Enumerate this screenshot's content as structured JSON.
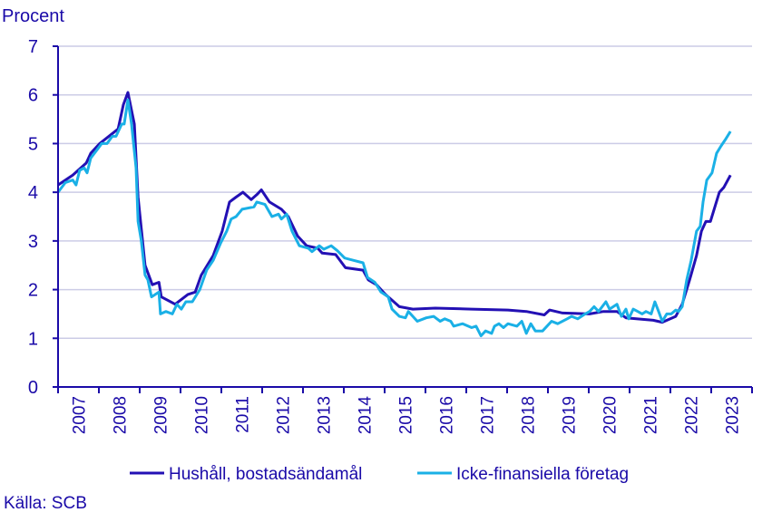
{
  "chart_data": {
    "type": "line",
    "ylabel": "Procent",
    "ylim": [
      0,
      7
    ],
    "yticks": [
      0,
      1,
      2,
      3,
      4,
      5,
      6,
      7
    ],
    "xlim": [
      2007,
      2024
    ],
    "xtick_labels": [
      "2007",
      "2008",
      "2009",
      "2010",
      "2011",
      "2012",
      "2013",
      "2014",
      "2015",
      "2016",
      "2017",
      "2018",
      "2019",
      "2020",
      "2021",
      "2022",
      "2023"
    ],
    "grid": true,
    "legend_position": "bottom",
    "source": "Källa: SCB",
    "colors": {
      "axis": "#1a0aa8",
      "grid": "#cccce6"
    },
    "series": [
      {
        "name": "Hushåll, bostadsändamål",
        "color": "#2310b4",
        "points": [
          [
            2007.0,
            4.15
          ],
          [
            2007.36,
            4.35
          ],
          [
            2007.69,
            4.6
          ],
          [
            2007.8,
            4.8
          ],
          [
            2008.02,
            5.0
          ],
          [
            2008.47,
            5.3
          ],
          [
            2008.6,
            5.8
          ],
          [
            2008.71,
            6.05
          ],
          [
            2008.87,
            5.4
          ],
          [
            2008.96,
            3.9
          ],
          [
            2009.13,
            2.5
          ],
          [
            2009.31,
            2.1
          ],
          [
            2009.47,
            2.15
          ],
          [
            2009.53,
            1.85
          ],
          [
            2009.87,
            1.7
          ],
          [
            2010.18,
            1.9
          ],
          [
            2010.36,
            1.95
          ],
          [
            2010.51,
            2.3
          ],
          [
            2010.8,
            2.7
          ],
          [
            2011.02,
            3.2
          ],
          [
            2011.2,
            3.8
          ],
          [
            2011.36,
            3.9
          ],
          [
            2011.53,
            4.0
          ],
          [
            2011.73,
            3.85
          ],
          [
            2011.87,
            3.95
          ],
          [
            2011.98,
            4.05
          ],
          [
            2012.18,
            3.8
          ],
          [
            2012.47,
            3.65
          ],
          [
            2012.64,
            3.5
          ],
          [
            2012.87,
            3.1
          ],
          [
            2013.09,
            2.9
          ],
          [
            2013.36,
            2.85
          ],
          [
            2013.47,
            2.75
          ],
          [
            2013.8,
            2.72
          ],
          [
            2014.04,
            2.45
          ],
          [
            2014.47,
            2.4
          ],
          [
            2014.6,
            2.2
          ],
          [
            2014.8,
            2.1
          ],
          [
            2015.02,
            1.9
          ],
          [
            2015.36,
            1.65
          ],
          [
            2015.69,
            1.6
          ],
          [
            2016.24,
            1.62
          ],
          [
            2017.13,
            1.6
          ],
          [
            2018.02,
            1.58
          ],
          [
            2018.47,
            1.55
          ],
          [
            2018.91,
            1.48
          ],
          [
            2019.04,
            1.58
          ],
          [
            2019.36,
            1.52
          ],
          [
            2020.02,
            1.5
          ],
          [
            2020.36,
            1.55
          ],
          [
            2020.69,
            1.55
          ],
          [
            2020.91,
            1.42
          ],
          [
            2021.58,
            1.37
          ],
          [
            2021.8,
            1.33
          ],
          [
            2022.13,
            1.45
          ],
          [
            2022.29,
            1.7
          ],
          [
            2022.47,
            2.2
          ],
          [
            2022.64,
            2.7
          ],
          [
            2022.76,
            3.2
          ],
          [
            2022.87,
            3.4
          ],
          [
            2022.98,
            3.4
          ],
          [
            2023.2,
            4.0
          ],
          [
            2023.31,
            4.1
          ],
          [
            2023.47,
            4.35
          ]
        ]
      },
      {
        "name": "Icke-finansiella företag",
        "color": "#1ab0e6",
        "points": [
          [
            2007.0,
            4.0
          ],
          [
            2007.18,
            4.2
          ],
          [
            2007.36,
            4.25
          ],
          [
            2007.44,
            4.15
          ],
          [
            2007.53,
            4.45
          ],
          [
            2007.64,
            4.5
          ],
          [
            2007.71,
            4.4
          ],
          [
            2007.8,
            4.7
          ],
          [
            2007.98,
            4.9
          ],
          [
            2008.07,
            5.0
          ],
          [
            2008.2,
            5.0
          ],
          [
            2008.33,
            5.15
          ],
          [
            2008.42,
            5.15
          ],
          [
            2008.56,
            5.4
          ],
          [
            2008.62,
            5.4
          ],
          [
            2008.71,
            5.9
          ],
          [
            2008.8,
            5.4
          ],
          [
            2008.91,
            4.5
          ],
          [
            2008.96,
            3.4
          ],
          [
            2009.04,
            3.0
          ],
          [
            2009.13,
            2.3
          ],
          [
            2009.2,
            2.2
          ],
          [
            2009.29,
            1.85
          ],
          [
            2009.47,
            1.95
          ],
          [
            2009.51,
            1.5
          ],
          [
            2009.64,
            1.55
          ],
          [
            2009.8,
            1.5
          ],
          [
            2009.91,
            1.7
          ],
          [
            2010.02,
            1.6
          ],
          [
            2010.13,
            1.75
          ],
          [
            2010.29,
            1.75
          ],
          [
            2010.47,
            2.0
          ],
          [
            2010.64,
            2.4
          ],
          [
            2010.8,
            2.6
          ],
          [
            2010.98,
            2.95
          ],
          [
            2011.13,
            3.2
          ],
          [
            2011.24,
            3.45
          ],
          [
            2011.36,
            3.5
          ],
          [
            2011.51,
            3.65
          ],
          [
            2011.8,
            3.7
          ],
          [
            2011.87,
            3.8
          ],
          [
            2012.07,
            3.75
          ],
          [
            2012.24,
            3.5
          ],
          [
            2012.4,
            3.55
          ],
          [
            2012.47,
            3.45
          ],
          [
            2012.6,
            3.55
          ],
          [
            2012.73,
            3.2
          ],
          [
            2012.91,
            2.9
          ],
          [
            2013.13,
            2.85
          ],
          [
            2013.22,
            2.78
          ],
          [
            2013.4,
            2.9
          ],
          [
            2013.51,
            2.83
          ],
          [
            2013.69,
            2.9
          ],
          [
            2013.84,
            2.8
          ],
          [
            2014.02,
            2.65
          ],
          [
            2014.24,
            2.6
          ],
          [
            2014.47,
            2.55
          ],
          [
            2014.58,
            2.25
          ],
          [
            2014.76,
            2.15
          ],
          [
            2014.91,
            1.95
          ],
          [
            2015.09,
            1.85
          ],
          [
            2015.18,
            1.6
          ],
          [
            2015.36,
            1.45
          ],
          [
            2015.51,
            1.42
          ],
          [
            2015.58,
            1.55
          ],
          [
            2015.69,
            1.45
          ],
          [
            2015.8,
            1.35
          ],
          [
            2016.02,
            1.42
          ],
          [
            2016.2,
            1.45
          ],
          [
            2016.36,
            1.35
          ],
          [
            2016.47,
            1.4
          ],
          [
            2016.62,
            1.35
          ],
          [
            2016.69,
            1.25
          ],
          [
            2016.91,
            1.3
          ],
          [
            2017.13,
            1.22
          ],
          [
            2017.24,
            1.25
          ],
          [
            2017.36,
            1.05
          ],
          [
            2017.47,
            1.15
          ],
          [
            2017.62,
            1.1
          ],
          [
            2017.69,
            1.25
          ],
          [
            2017.8,
            1.3
          ],
          [
            2017.91,
            1.22
          ],
          [
            2018.02,
            1.3
          ],
          [
            2018.24,
            1.25
          ],
          [
            2018.36,
            1.35
          ],
          [
            2018.47,
            1.1
          ],
          [
            2018.58,
            1.3
          ],
          [
            2018.69,
            1.15
          ],
          [
            2018.87,
            1.15
          ],
          [
            2019.09,
            1.35
          ],
          [
            2019.24,
            1.3
          ],
          [
            2019.47,
            1.4
          ],
          [
            2019.58,
            1.45
          ],
          [
            2019.73,
            1.4
          ],
          [
            2019.91,
            1.5
          ],
          [
            2020.02,
            1.55
          ],
          [
            2020.13,
            1.65
          ],
          [
            2020.24,
            1.55
          ],
          [
            2020.42,
            1.75
          ],
          [
            2020.51,
            1.6
          ],
          [
            2020.69,
            1.7
          ],
          [
            2020.8,
            1.45
          ],
          [
            2020.91,
            1.6
          ],
          [
            2020.98,
            1.4
          ],
          [
            2021.09,
            1.6
          ],
          [
            2021.2,
            1.55
          ],
          [
            2021.31,
            1.5
          ],
          [
            2021.4,
            1.55
          ],
          [
            2021.53,
            1.5
          ],
          [
            2021.62,
            1.75
          ],
          [
            2021.71,
            1.55
          ],
          [
            2021.8,
            1.35
          ],
          [
            2021.91,
            1.5
          ],
          [
            2022.02,
            1.5
          ],
          [
            2022.13,
            1.58
          ],
          [
            2022.2,
            1.55
          ],
          [
            2022.29,
            1.65
          ],
          [
            2022.4,
            2.2
          ],
          [
            2022.51,
            2.6
          ],
          [
            2022.64,
            3.2
          ],
          [
            2022.73,
            3.3
          ],
          [
            2022.8,
            3.8
          ],
          [
            2022.89,
            4.25
          ],
          [
            2023.02,
            4.4
          ],
          [
            2023.13,
            4.8
          ],
          [
            2023.24,
            4.95
          ],
          [
            2023.36,
            5.1
          ],
          [
            2023.47,
            5.25
          ]
        ]
      }
    ]
  }
}
